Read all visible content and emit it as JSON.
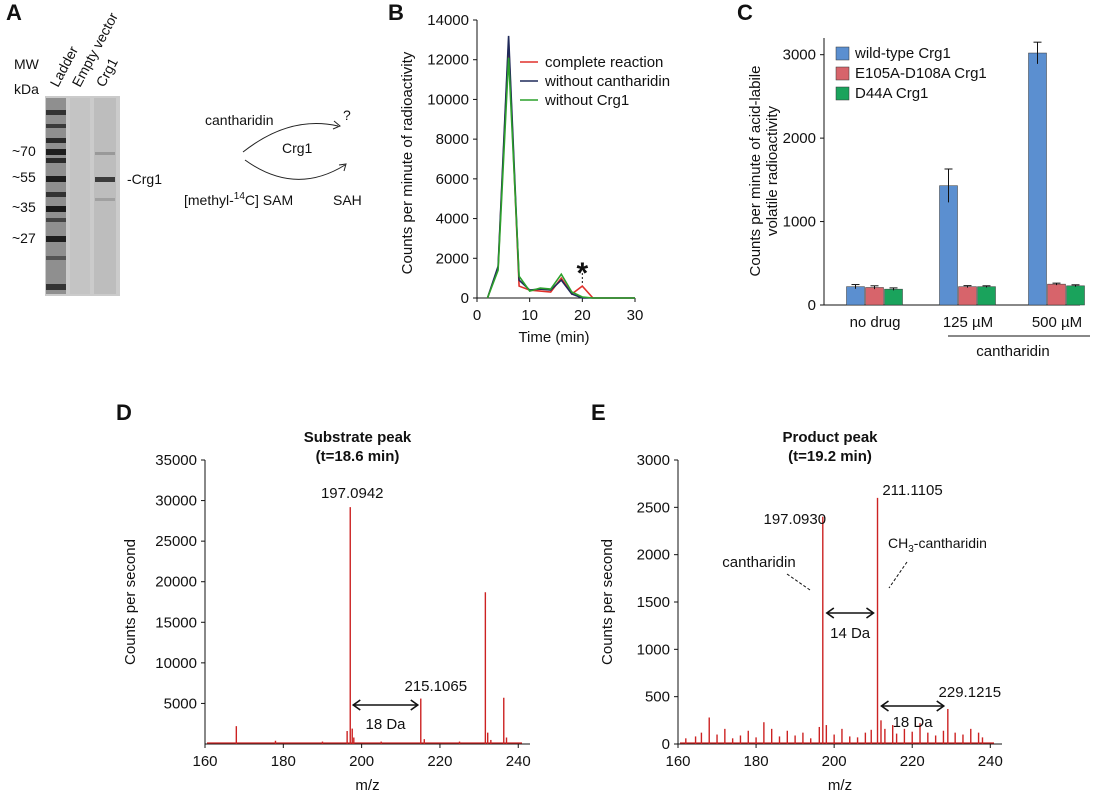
{
  "panel_labels": [
    "A",
    "B",
    "C",
    "D",
    "E"
  ],
  "panelA": {
    "mw_label": "MW",
    "kda_label": "kDa",
    "lanes": [
      "Ladder",
      "Empty vector",
      "Crg1"
    ],
    "markers": [
      "~70",
      "~55",
      "~35",
      "~27"
    ],
    "band_label": "-Crg1",
    "scheme": {
      "substrate": "cantharidin",
      "product": "?",
      "enzyme": "Crg1",
      "donor_pre": "[methyl-",
      "donor_sup": "14",
      "donor_post": "C] SAM",
      "donor_product": "SAH"
    }
  },
  "chart_data": [
    {
      "id": "B",
      "type": "line",
      "title": "",
      "xlabel": "Time (min)",
      "ylabel": "Counts per minute of radioactivity",
      "xlim": [
        0,
        30
      ],
      "ylim": [
        0,
        14000
      ],
      "xticks": [
        0,
        10,
        20,
        30
      ],
      "yticks": [
        0,
        2000,
        4000,
        6000,
        8000,
        10000,
        12000,
        14000
      ],
      "x": [
        2,
        4,
        6,
        8,
        10,
        12,
        14,
        16,
        18,
        20,
        22,
        24,
        26,
        28,
        30
      ],
      "series": [
        {
          "name": "complete reaction",
          "color": "#e0312b",
          "values": [
            0,
            1500,
            12900,
            600,
            400,
            350,
            300,
            1000,
            200,
            600,
            0,
            0,
            0,
            0,
            0
          ]
        },
        {
          "name": "without cantharidin",
          "color": "#1f2a5a",
          "values": [
            0,
            1600,
            13200,
            900,
            400,
            450,
            400,
            900,
            200,
            0,
            0,
            0,
            0,
            0,
            0
          ]
        },
        {
          "name": "without Crg1",
          "color": "#2ca02c",
          "values": [
            0,
            1400,
            12100,
            1100,
            350,
            500,
            450,
            1200,
            300,
            50,
            0,
            0,
            0,
            0,
            0
          ]
        }
      ],
      "annotation": {
        "text": "*",
        "x": 20
      }
    },
    {
      "id": "C",
      "type": "bar",
      "title": "",
      "xlabel": "",
      "ylabel_line1": "Counts per minute of acid-labile",
      "ylabel_line2": "volatile radioactivity",
      "ylim": [
        0,
        3200
      ],
      "yticks": [
        0,
        1000,
        2000,
        3000
      ],
      "categories": [
        "no drug",
        "125 µM",
        "500 µM"
      ],
      "group_label": "cantharidin",
      "series": [
        {
          "name": "wild-type Crg1",
          "color": "#5b8fd0",
          "values": [
            220,
            1430,
            3020
          ],
          "errors": [
            25,
            200,
            130
          ]
        },
        {
          "name": "E105A-D108A Crg1",
          "color": "#d7646b",
          "values": [
            210,
            220,
            250
          ],
          "errors": [
            20,
            12,
            12
          ]
        },
        {
          "name": "D44A Crg1",
          "color": "#1aa35c",
          "values": [
            190,
            220,
            230
          ],
          "errors": [
            15,
            10,
            12
          ]
        }
      ]
    },
    {
      "id": "D",
      "type": "bar",
      "title_line1": "Substrate peak",
      "title_line2": "(t=18.6 min)",
      "xlabel": "m/z",
      "ylabel": "Counts per second",
      "xlim": [
        160,
        243
      ],
      "ylim": [
        0,
        35000
      ],
      "xticks": [
        160,
        180,
        200,
        220,
        240
      ],
      "yticks": [
        5000,
        10000,
        15000,
        20000,
        25000,
        30000,
        35000
      ],
      "color": "#cc2222",
      "peaks": [
        [
          168.0,
          2200
        ],
        [
          196.3,
          1600
        ],
        [
          197.0942,
          29200
        ],
        [
          197.6,
          1900
        ],
        [
          198.0,
          800
        ],
        [
          215.1065,
          5600
        ],
        [
          216.0,
          600
        ],
        [
          231.6,
          18700
        ],
        [
          232.2,
          1400
        ],
        [
          233.0,
          500
        ],
        [
          236.3,
          5700
        ],
        [
          237.0,
          800
        ],
        [
          178.0,
          400
        ],
        [
          190.0,
          300
        ],
        [
          205.0,
          300
        ],
        [
          225.0,
          300
        ]
      ],
      "peak_labels": [
        {
          "mz": 197.0942,
          "text": "197.0942"
        },
        {
          "mz": 215.1065,
          "text": "215.1065"
        }
      ],
      "arrow": {
        "from": 197.1,
        "to": 215.1,
        "text": "18 Da"
      }
    },
    {
      "id": "E",
      "type": "bar",
      "title_line1": "Product peak",
      "title_line2": "(t=19.2 min)",
      "xlabel": "m/z",
      "ylabel": "Counts per second",
      "xlim": [
        160,
        243
      ],
      "ylim": [
        0,
        3000
      ],
      "xticks": [
        160,
        180,
        200,
        220,
        240
      ],
      "yticks": [
        0,
        500,
        1000,
        1500,
        2000,
        2500,
        3000
      ],
      "color": "#cc2222",
      "peaks": [
        [
          162.0,
          60
        ],
        [
          164.5,
          80
        ],
        [
          166.0,
          120
        ],
        [
          168.0,
          280
        ],
        [
          170.0,
          100
        ],
        [
          172.0,
          160
        ],
        [
          174.0,
          60
        ],
        [
          176.0,
          90
        ],
        [
          178.0,
          140
        ],
        [
          180.0,
          70
        ],
        [
          182.0,
          230
        ],
        [
          184.0,
          160
        ],
        [
          186.0,
          80
        ],
        [
          188.0,
          140
        ],
        [
          190.0,
          90
        ],
        [
          192.0,
          120
        ],
        [
          194.0,
          60
        ],
        [
          196.2,
          180
        ],
        [
          197.093,
          2400
        ],
        [
          198.0,
          200
        ],
        [
          200.0,
          100
        ],
        [
          202.0,
          160
        ],
        [
          204.0,
          80
        ],
        [
          206.0,
          70
        ],
        [
          208.0,
          120
        ],
        [
          209.5,
          150
        ],
        [
          211.1105,
          2600
        ],
        [
          212.0,
          250
        ],
        [
          213.0,
          160
        ],
        [
          215.0,
          200
        ],
        [
          216.0,
          110
        ],
        [
          218.0,
          160
        ],
        [
          220.0,
          130
        ],
        [
          222.0,
          220
        ],
        [
          224.0,
          120
        ],
        [
          226.0,
          90
        ],
        [
          228.0,
          140
        ],
        [
          229.1215,
          370
        ],
        [
          231.0,
          120
        ],
        [
          233.0,
          100
        ],
        [
          235.0,
          160
        ],
        [
          237.0,
          120
        ],
        [
          238.0,
          70
        ]
      ],
      "peak_labels": [
        {
          "mz": 197.093,
          "text": "197.0930"
        },
        {
          "mz": 211.1105,
          "text": "211.1105"
        },
        {
          "mz": 229.1215,
          "text": "229.1215"
        }
      ],
      "annotations": {
        "left": "cantharidin",
        "right_sub": "CH",
        "right_subscript": "3",
        "right_post": "-cantharidin"
      },
      "arrows": [
        {
          "from": 197.1,
          "to": 211.1,
          "text": "14 Da"
        },
        {
          "from": 211.1,
          "to": 229.1,
          "text": "18 Da"
        }
      ]
    }
  ]
}
